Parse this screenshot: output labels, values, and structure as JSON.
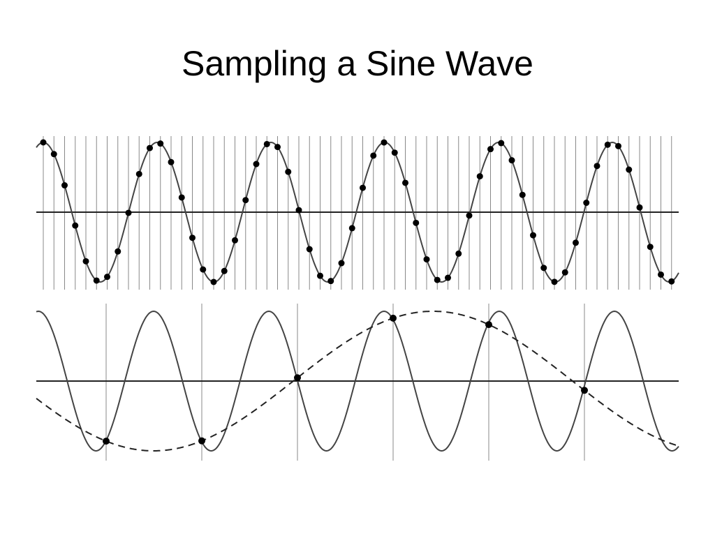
{
  "title": "Sampling a Sine Wave"
}
